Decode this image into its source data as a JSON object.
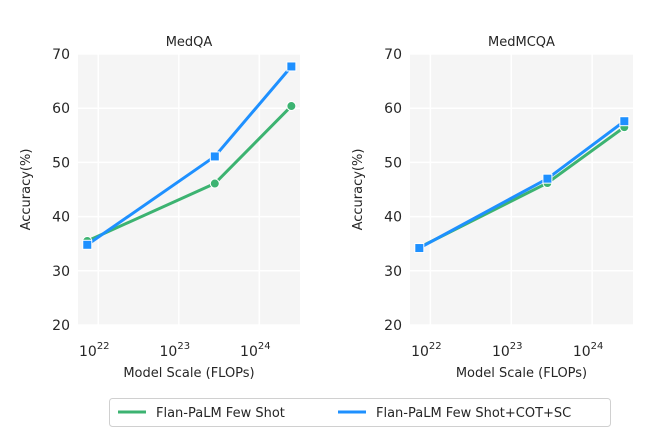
{
  "colors": {
    "green": "#3cb371",
    "blue": "#1e90ff",
    "panel_bg": "#f5f5f5"
  },
  "legend": {
    "placement": "bottom-center",
    "entries": [
      "Flan-PaLM Few Shot",
      "Flan-PaLM Few Shot+COT+SC"
    ]
  },
  "chart_data": [
    {
      "type": "line",
      "title": "MedQA",
      "xlabel": "Model Scale (FLOPs)",
      "ylabel": "Accuracy(%)",
      "xscale": "log",
      "xlim": [
        5.6e+21,
        3.2e+24
      ],
      "ylim": [
        20,
        70
      ],
      "grid": true,
      "xticks": [
        {
          "base": "10",
          "exp": "22",
          "value": 1e+22
        },
        {
          "base": "10",
          "exp": "23",
          "value": 1e+23
        },
        {
          "base": "10",
          "exp": "24",
          "value": 1e+24
        }
      ],
      "yticks": [
        20,
        30,
        40,
        50,
        60,
        70
      ],
      "x": [
        7.3e+21,
        2.8e+23,
        2.5e+24
      ],
      "series": [
        {
          "name": "Flan-PaLM Few Shot",
          "marker": "circle",
          "color": "#3cb371",
          "values": [
            35.5,
            46.1,
            60.4
          ]
        },
        {
          "name": "Flan-PaLM Few Shot+COT+SC",
          "marker": "square",
          "color": "#1e90ff",
          "values": [
            34.8,
            51.1,
            67.7
          ]
        }
      ]
    },
    {
      "type": "line",
      "title": "MedMCQA",
      "xlabel": "Model Scale (FLOPs)",
      "ylabel": "Accuracy(%)",
      "xscale": "log",
      "xlim": [
        5.6e+21,
        3.2e+24
      ],
      "ylim": [
        20,
        70
      ],
      "grid": true,
      "xticks": [
        {
          "base": "10",
          "exp": "22",
          "value": 1e+22
        },
        {
          "base": "10",
          "exp": "23",
          "value": 1e+23
        },
        {
          "base": "10",
          "exp": "24",
          "value": 1e+24
        }
      ],
      "yticks": [
        20,
        30,
        40,
        50,
        60,
        70
      ],
      "x": [
        7.3e+21,
        2.8e+23,
        2.5e+24
      ],
      "series": [
        {
          "name": "Flan-PaLM Few Shot",
          "marker": "circle",
          "color": "#3cb371",
          "values": [
            34.3,
            46.2,
            56.5
          ]
        },
        {
          "name": "Flan-PaLM Few Shot+COT+SC",
          "marker": "square",
          "color": "#1e90ff",
          "values": [
            34.2,
            47.0,
            57.6
          ]
        }
      ]
    }
  ]
}
